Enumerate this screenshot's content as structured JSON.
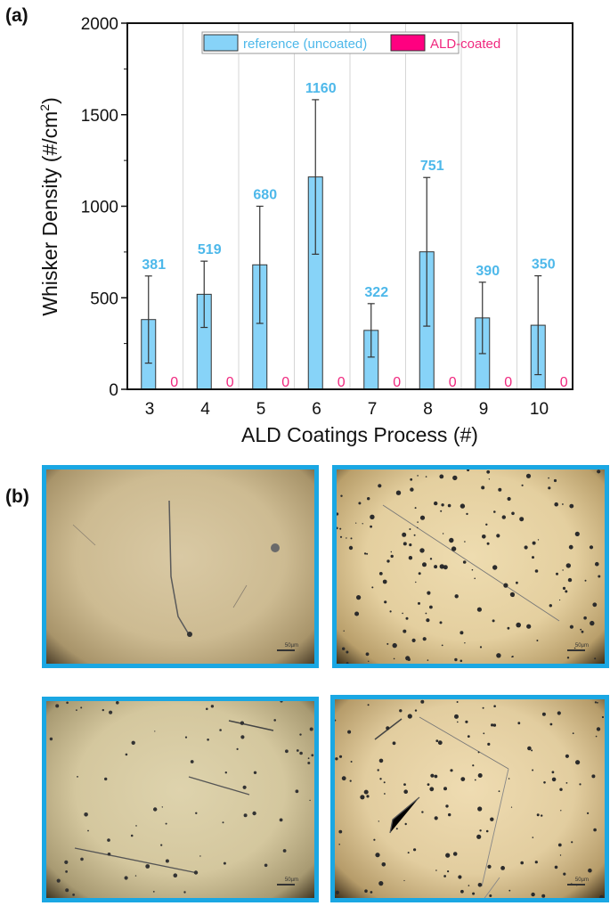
{
  "panels": {
    "a_label": "(a)",
    "b_label": "(b)"
  },
  "chart_data": {
    "type": "bar",
    "title": "",
    "xlabel": "ALD Coatings Process (#)",
    "ylabel": "Whisker Density (#/cm²)",
    "ylabel_main": "Whisker Density (#/cm",
    "ylabel_sup": "2",
    "ylabel_end": ")",
    "ylim": [
      0,
      2000
    ],
    "yticks": [
      0,
      500,
      1000,
      1500,
      2000
    ],
    "grid": "vertical separators between categories",
    "legend_position": "top-center inside plot",
    "categories": [
      "3",
      "4",
      "5",
      "6",
      "7",
      "8",
      "9",
      "10"
    ],
    "series": [
      {
        "name": "reference (uncoated)",
        "color": "#87d3f8",
        "label_color": "#4db8ea",
        "values": [
          381,
          519,
          680,
          1160,
          322,
          751,
          390,
          350
        ],
        "error": [
          238,
          181,
          320,
          422,
          146,
          406,
          195,
          270
        ]
      },
      {
        "name": "ALD-coated",
        "color": "#ff0080",
        "label_color": "#f0287f",
        "values": [
          0,
          0,
          0,
          0,
          0,
          0,
          0,
          0
        ],
        "error": [
          0,
          0,
          0,
          0,
          0,
          0,
          0,
          0
        ]
      }
    ]
  },
  "micrographs": [
    {
      "position": "top-left",
      "scale_label": "50µm",
      "border_color": "#1aa7e3"
    },
    {
      "position": "top-right",
      "scale_label": "50µm",
      "border_color": "#1aa7e3"
    },
    {
      "position": "bottom-left",
      "scale_label": "50µm",
      "border_color": "#1aa7e3"
    },
    {
      "position": "bottom-right",
      "scale_label": "50µm",
      "border_color": "#1aa7e3"
    }
  ]
}
